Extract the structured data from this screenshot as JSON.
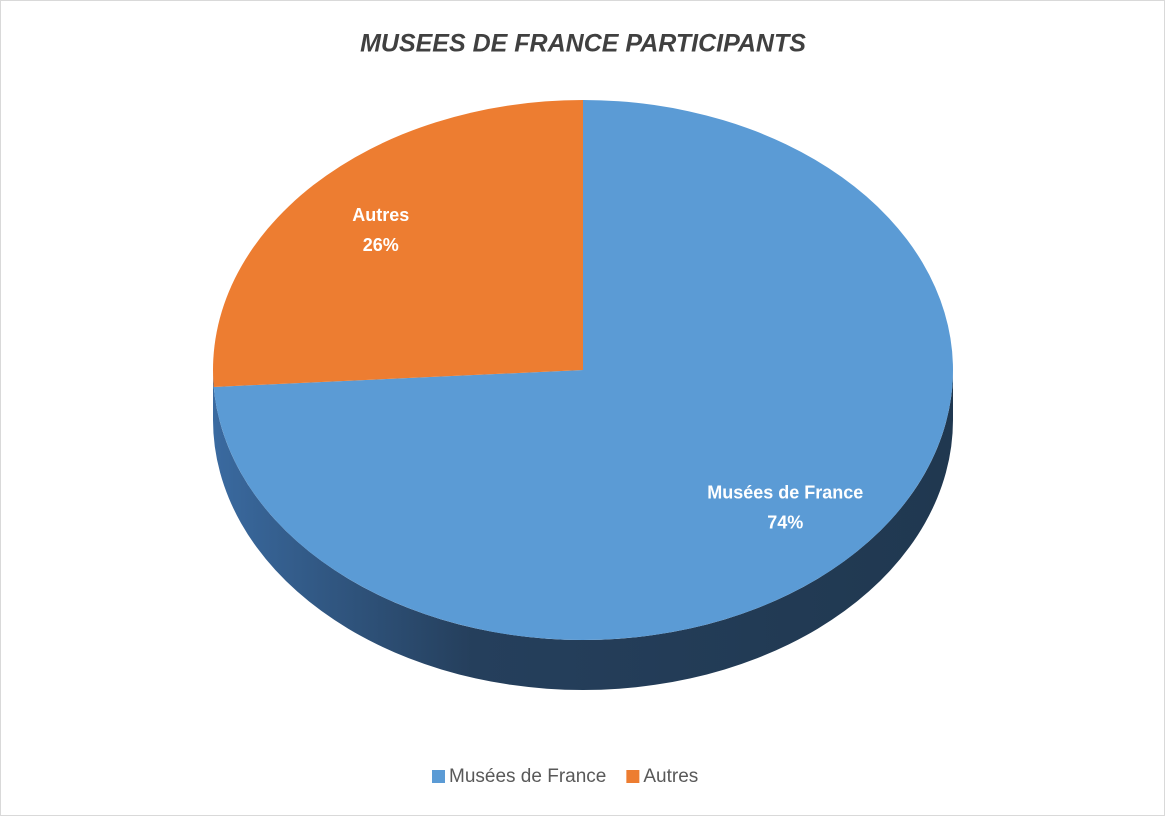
{
  "chart_data": {
    "type": "pie",
    "title": "MUSEES DE FRANCE PARTICIPANTS",
    "categories": [
      "Musées de France",
      "Autres"
    ],
    "values": [
      74,
      26
    ],
    "value_labels": [
      "74%",
      "26%"
    ],
    "colors": [
      "#5b9bd5",
      "#ed7d31"
    ],
    "legend": "bottom"
  }
}
